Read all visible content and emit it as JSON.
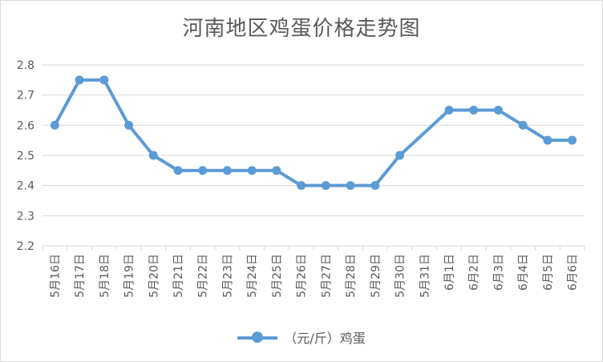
{
  "chart_data": {
    "type": "line",
    "title": "河南地区鸡蛋价格走势图",
    "xlabel": "",
    "ylabel": "",
    "ylim": [
      2.2,
      2.8
    ],
    "yticks": [
      "2.2",
      "2.3",
      "2.4",
      "2.5",
      "2.6",
      "2.7",
      "2.8"
    ],
    "grid": true,
    "legend_position": "bottom",
    "categories": [
      "5月16日",
      "5月17日",
      "5月18日",
      "5月19日",
      "5月20日",
      "5月21日",
      "5月22日",
      "5月23日",
      "5月24日",
      "5月25日",
      "5月26日",
      "5月27日",
      "5月28日",
      "5月29日",
      "5月30日",
      "5月31日",
      "6月1日",
      "6月2日",
      "6月3日",
      "6月4日",
      "6月5日",
      "6月6日"
    ],
    "series": [
      {
        "name": "（元/斤）鸡蛋",
        "color": "#5b9bd5",
        "values": [
          2.6,
          2.75,
          2.75,
          2.6,
          2.5,
          2.45,
          2.45,
          2.45,
          2.45,
          2.45,
          2.4,
          2.4,
          2.4,
          2.4,
          2.5,
          null,
          2.65,
          2.65,
          2.65,
          2.6,
          2.55,
          2.55
        ]
      }
    ]
  }
}
